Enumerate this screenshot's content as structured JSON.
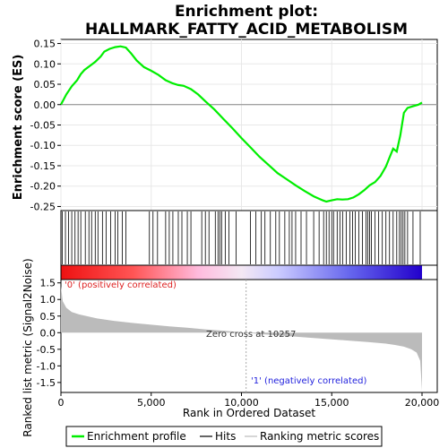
{
  "chart_data": {
    "type": "line",
    "title_line1": "Enrichment plot:",
    "title_line2": "HALLMARK_FATTY_ACID_METABOLISM",
    "es_ylabel": "Enrichment score (ES)",
    "metric_ylabel": "Ranked list metric (Signal2Noise)",
    "xlabel": "Rank in Ordered Dataset",
    "xlim": [
      0,
      20000
    ],
    "x_ticks": [
      0,
      5000,
      10000,
      15000,
      20000
    ],
    "x_tick_labels": [
      "0",
      "5,000",
      "10,000",
      "15,000",
      "20,000"
    ],
    "es_ylim": [
      -0.26,
      0.16
    ],
    "es_ticks": [
      0.15,
      0.1,
      0.05,
      0.0,
      -0.05,
      -0.1,
      -0.15,
      -0.2,
      -0.25
    ],
    "es_tick_labels": [
      "0.15",
      "0.10",
      "0.05",
      "0.00",
      "-0.05",
      "-0.10",
      "-0.15",
      "-0.20",
      "-0.25"
    ],
    "metric_ylim": [
      -1.8,
      1.6
    ],
    "metric_ticks": [
      1.5,
      1.0,
      0.5,
      0.0,
      -0.5,
      -1.0,
      -1.5
    ],
    "metric_tick_labels": [
      "1.5",
      "1.0",
      "0.5",
      "0.0",
      "-0.5",
      "-1.0",
      "-1.5"
    ],
    "es_series": {
      "name": "Enrichment profile",
      "color": "#00ee00",
      "x": [
        0,
        300,
        600,
        900,
        1100,
        1300,
        1600,
        1900,
        2200,
        2400,
        2700,
        3000,
        3300,
        3600,
        3900,
        4200,
        4600,
        5000,
        5400,
        5800,
        6200,
        6500,
        6800,
        7200,
        7600,
        8000,
        8500,
        9000,
        9500,
        10000,
        10500,
        11000,
        11500,
        12000,
        12500,
        13000,
        13500,
        14000,
        14500,
        14700,
        15000,
        15300,
        15600,
        15900,
        16200,
        16500,
        16800,
        17100,
        17400,
        17700,
        18000,
        18200,
        18400,
        18600,
        18800,
        19000,
        19200,
        19500,
        19800,
        20000
      ],
      "y": [
        0.0,
        0.025,
        0.045,
        0.06,
        0.075,
        0.085,
        0.095,
        0.105,
        0.118,
        0.13,
        0.137,
        0.141,
        0.143,
        0.14,
        0.125,
        0.108,
        0.092,
        0.083,
        0.073,
        0.06,
        0.052,
        0.048,
        0.046,
        0.038,
        0.025,
        0.008,
        -0.012,
        -0.035,
        -0.058,
        -0.082,
        -0.105,
        -0.128,
        -0.148,
        -0.168,
        -0.183,
        -0.198,
        -0.212,
        -0.225,
        -0.235,
        -0.238,
        -0.235,
        -0.232,
        -0.233,
        -0.232,
        -0.228,
        -0.22,
        -0.21,
        -0.198,
        -0.19,
        -0.175,
        -0.152,
        -0.13,
        -0.108,
        -0.115,
        -0.075,
        -0.02,
        -0.008,
        -0.004,
        0.0,
        0.005
      ]
    },
    "hits_series": {
      "name": "Hits",
      "x": [
        80,
        250,
        420,
        600,
        780,
        950,
        1100,
        1350,
        1550,
        1700,
        1900,
        2050,
        2300,
        2500,
        2750,
        3000,
        3150,
        3400,
        3600,
        4900,
        5100,
        5350,
        5800,
        6000,
        6200,
        6500,
        6700,
        7000,
        7200,
        7800,
        8000,
        8200,
        8550,
        8700,
        8800,
        8900,
        9100,
        9300,
        9700,
        10500,
        10800,
        11100,
        11300,
        11600,
        11900,
        12100,
        12400,
        12650,
        12800,
        13000,
        13300,
        13600,
        14000,
        14300,
        14550,
        14700,
        14850,
        15000,
        15100,
        15300,
        15450,
        15600,
        15800,
        16000,
        16150,
        16300,
        16500,
        16700,
        16900,
        17000,
        17100,
        17200,
        17400,
        17600,
        17800,
        18000,
        18200,
        18400,
        18600,
        18750,
        18850,
        18950,
        19050,
        19200,
        19500,
        19900
      ]
    },
    "metric_series": {
      "name": "Ranking metric scores",
      "x": [
        0,
        100,
        300,
        600,
        1000,
        1500,
        2000,
        3000,
        4000,
        5000,
        6000,
        7000,
        8000,
        9000,
        10000,
        10257,
        11000,
        12000,
        13000,
        14000,
        15000,
        16000,
        17000,
        18000,
        18500,
        19000,
        19400,
        19700,
        19900,
        20000
      ],
      "y": [
        1.4,
        0.95,
        0.75,
        0.62,
        0.55,
        0.49,
        0.43,
        0.35,
        0.29,
        0.24,
        0.19,
        0.15,
        0.1,
        0.06,
        0.01,
        0.0,
        -0.04,
        -0.08,
        -0.12,
        -0.16,
        -0.2,
        -0.24,
        -0.28,
        -0.33,
        -0.37,
        -0.42,
        -0.5,
        -0.6,
        -0.85,
        -1.75
      ]
    },
    "zero_cross_label": "Zero cross at 10257",
    "zero_cross_x": 10257,
    "pos_label": "'0' (positively correlated)",
    "neg_label": "'1' (negatively correlated)",
    "legend": {
      "placement": "bottom",
      "items": [
        {
          "label": "Enrichment profile",
          "color": "#00ee00"
        },
        {
          "label": "Hits",
          "color": "#000000"
        },
        {
          "label": "Ranking metric scores",
          "color": "#bbbbbb"
        }
      ]
    }
  }
}
